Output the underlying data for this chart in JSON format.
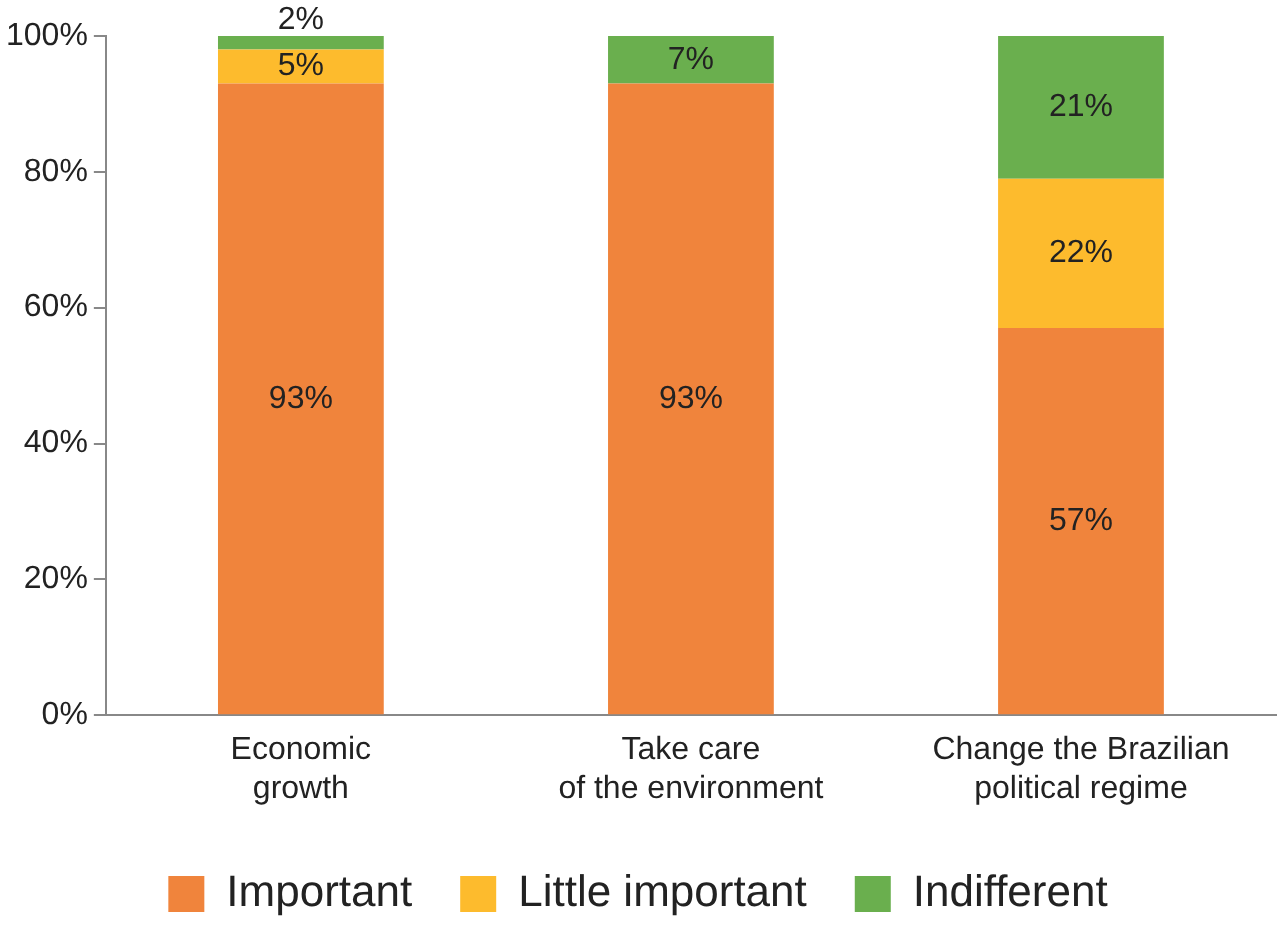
{
  "chart_data": {
    "type": "bar",
    "stacked": true,
    "categories": [
      "Economic\ngrowth",
      "Take care\nof the environment",
      "Change the Brazilian\npolitical regime"
    ],
    "series": [
      {
        "name": "Important",
        "color": "#f0843c",
        "values": [
          93,
          93,
          57
        ],
        "value_labels": [
          "93%",
          "93%",
          "57%"
        ]
      },
      {
        "name": "Little important",
        "color": "#fdbb2d",
        "values": [
          5,
          0,
          22
        ],
        "value_labels": [
          "5%",
          null,
          "22%"
        ]
      },
      {
        "name": "Indifferent",
        "color": "#6aaf4e",
        "values": [
          2,
          7,
          21
        ],
        "value_labels": [
          "2%",
          "7%",
          "21%"
        ]
      }
    ],
    "ylim": [
      0,
      100
    ],
    "yticks": [
      {
        "value": 0,
        "label": "0%"
      },
      {
        "value": 20,
        "label": "20%"
      },
      {
        "value": 40,
        "label": "40%"
      },
      {
        "value": 60,
        "label": "60%"
      },
      {
        "value": 80,
        "label": "80%"
      },
      {
        "value": 100,
        "label": "100%"
      }
    ],
    "grid": false,
    "legend": "bottom"
  }
}
